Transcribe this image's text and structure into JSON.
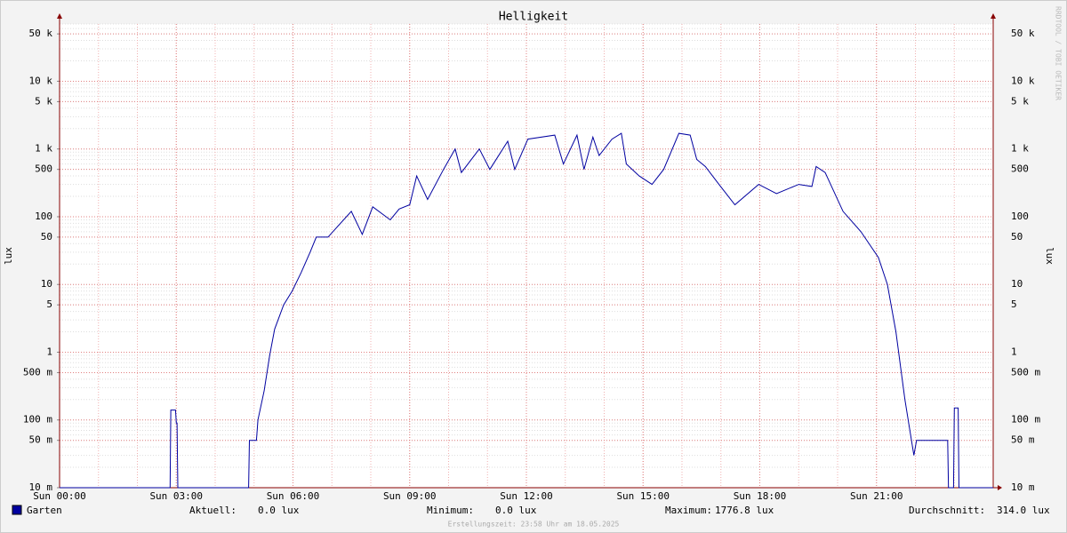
{
  "chart_data": {
    "type": "line",
    "title": "Helligkeit",
    "ylabel": "lux",
    "side_label": "RRDTOOL / TOBI OETIKER",
    "log_scale": true,
    "grid": true,
    "xlim": [
      0,
      24
    ],
    "ylim": [
      0.01,
      70000
    ],
    "xticks": [
      {
        "value": 0,
        "label": "Sun 00:00"
      },
      {
        "value": 3,
        "label": "Sun 03:00"
      },
      {
        "value": 6,
        "label": "Sun 06:00"
      },
      {
        "value": 9,
        "label": "Sun 09:00"
      },
      {
        "value": 12,
        "label": "Sun 12:00"
      },
      {
        "value": 15,
        "label": "Sun 15:00"
      },
      {
        "value": 18,
        "label": "Sun 18:00"
      },
      {
        "value": 21,
        "label": "Sun 21:00"
      }
    ],
    "yticks": [
      {
        "value": 0.01,
        "label": "10 m"
      },
      {
        "value": 0.05,
        "label": "50 m"
      },
      {
        "value": 0.1,
        "label": "100 m"
      },
      {
        "value": 0.5,
        "label": "500 m"
      },
      1,
      5,
      10,
      50,
      100,
      500,
      {
        "value": 1000,
        "label": "1 k"
      },
      {
        "value": 5000,
        "label": "5 k"
      },
      {
        "value": 10000,
        "label": "10 k"
      },
      {
        "value": 50000,
        "label": "50 k"
      }
    ],
    "x": [
      0,
      2.84,
      2.86,
      2.98,
      3.0,
      3.02,
      3.04,
      4.86,
      4.88,
      5.06,
      5.1,
      5.26,
      5.4,
      5.53,
      5.76,
      5.98,
      6.21,
      6.44,
      6.6,
      6.9,
      7.13,
      7.5,
      7.78,
      8.05,
      8.5,
      8.73,
      9.0,
      9.18,
      9.46,
      9.87,
      10.17,
      10.33,
      10.79,
      11.06,
      11.52,
      11.7,
      12.04,
      12.73,
      12.95,
      13.3,
      13.48,
      13.71,
      13.87,
      14.2,
      14.44,
      14.57,
      14.9,
      15.23,
      15.53,
      15.92,
      16.21,
      16.38,
      16.6,
      16.95,
      17.36,
      17.97,
      18.43,
      19.0,
      19.34,
      19.45,
      19.68,
      20.14,
      20.6,
      21.05,
      21.28,
      21.5,
      21.73,
      21.96,
      22.03,
      22.83,
      22.85,
      22.98,
      23.0,
      23.1,
      23.12,
      24
    ],
    "series": [
      {
        "name": "Garten",
        "color": "#0000a0",
        "values": [
          0,
          0,
          0.14,
          0.14,
          0.09,
          0.09,
          0,
          0,
          0.05,
          0.05,
          0.1,
          0.27,
          0.9,
          2.2,
          5,
          8,
          15,
          30,
          50,
          50,
          70,
          120,
          55,
          140,
          90,
          130,
          150,
          400,
          180,
          500,
          1000,
          450,
          1000,
          500,
          1300,
          500,
          1400,
          1600,
          600,
          1600,
          500,
          1500,
          800,
          1400,
          1700,
          600,
          400,
          300,
          500,
          1700,
          1600,
          700,
          550,
          300,
          150,
          300,
          220,
          300,
          280,
          550,
          450,
          120,
          60,
          25,
          10,
          2,
          0.2,
          0.03,
          0.05,
          0.05,
          0,
          0,
          0.15,
          0.15,
          0,
          0
        ]
      }
    ],
    "legend": [
      {
        "label": "Aktuell:",
        "value": "0.0 lux"
      },
      {
        "label": "Minimum:",
        "value": "0.0 lux"
      },
      {
        "label": "Maximum:",
        "value": "1776.8 lux"
      },
      {
        "label": "Durchschnitt:",
        "value": "314.0 lux"
      }
    ],
    "footer": "Erstellungszeit: 23:58 Uhr am 18.05.2025"
  }
}
